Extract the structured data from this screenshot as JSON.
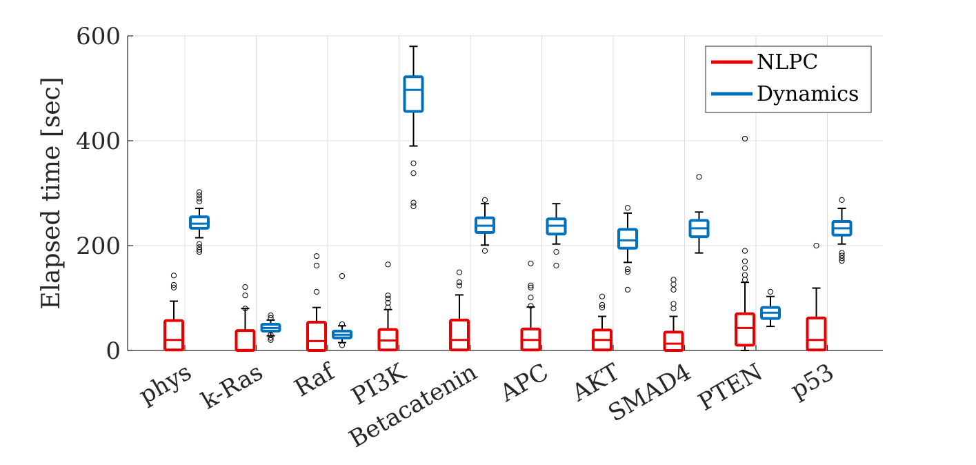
{
  "chart_data": {
    "type": "boxplot",
    "title": "",
    "xlabel": "",
    "ylabel": "Elapsed time [sec]",
    "ylim": [
      0,
      600
    ],
    "yticks": [
      0,
      200,
      400,
      600
    ],
    "grid": true,
    "legend_position": "top-right",
    "categories": [
      "phys",
      "k-Ras",
      "Raf",
      "PI3K",
      "Betacatenin",
      "APC",
      "AKT",
      "SMAD4",
      "PTEN",
      "p53"
    ],
    "series": [
      {
        "name": "NLPC",
        "color": "#e60000",
        "boxes": [
          {
            "whisker_low": 0,
            "q1": 1,
            "median": 20,
            "q3": 57,
            "whisker_high": 94,
            "outliers": [
              120,
              125,
              143
            ]
          },
          {
            "whisker_low": 0,
            "q1": 0,
            "median": 1,
            "q3": 38,
            "whisker_high": 80,
            "outliers": [
              80,
              105,
              121
            ]
          },
          {
            "whisker_low": 0,
            "q1": 0,
            "median": 18,
            "q3": 54,
            "whisker_high": 82,
            "outliers": [
              112,
              162,
              180
            ]
          },
          {
            "whisker_low": 0,
            "q1": 1,
            "median": 19,
            "q3": 40,
            "whisker_high": 78,
            "outliers": [
              82,
              91,
              99,
              105,
              164
            ]
          },
          {
            "whisker_low": 0,
            "q1": 1,
            "median": 20,
            "q3": 58,
            "whisker_high": 106,
            "outliers": [
              124,
              130,
              149
            ]
          },
          {
            "whisker_low": 0,
            "q1": 1,
            "median": 20,
            "q3": 41,
            "whisker_high": 83,
            "outliers": [
              85,
              101,
              120,
              124,
              166
            ]
          },
          {
            "whisker_low": 0,
            "q1": 1,
            "median": 20,
            "q3": 39,
            "whisker_high": 65,
            "outliers": [
              82,
              87,
              103
            ]
          },
          {
            "whisker_low": 0,
            "q1": 0,
            "median": 13,
            "q3": 35,
            "whisker_high": 65,
            "outliers": [
              80,
              89,
              116,
              126,
              135
            ]
          },
          {
            "whisker_low": 0,
            "q1": 10,
            "median": 43,
            "q3": 70,
            "whisker_high": 130,
            "outliers": [
              135,
              144,
              157,
              170,
              190,
              404
            ]
          },
          {
            "whisker_low": 0,
            "q1": 1,
            "median": 20,
            "q3": 62,
            "whisker_high": 119,
            "outliers": [
              200
            ]
          }
        ]
      },
      {
        "name": "Dynamics",
        "color": "#0072bd",
        "boxes": [
          {
            "whisker_low": 215,
            "q1": 233,
            "median": 242,
            "q3": 255,
            "whisker_high": 271,
            "outliers": [
              188,
              192,
              197,
              203,
              284,
              290,
              296,
              302
            ]
          },
          {
            "whisker_low": 28,
            "q1": 37,
            "median": 43,
            "q3": 50,
            "whisker_high": 58,
            "outliers": [
              20,
              24,
              30,
              62,
              67
            ]
          },
          {
            "whisker_low": 15,
            "q1": 24,
            "median": 30,
            "q3": 37,
            "whisker_high": 47,
            "outliers": [
              10,
              50,
              142
            ]
          },
          {
            "whisker_low": 390,
            "q1": 456,
            "median": 497,
            "q3": 522,
            "whisker_high": 580,
            "outliers": [
              275,
              282,
              338,
              357
            ]
          },
          {
            "whisker_low": 201,
            "q1": 225,
            "median": 238,
            "q3": 253,
            "whisker_high": 280,
            "outliers": [
              190,
              287
            ]
          },
          {
            "whisker_low": 203,
            "q1": 222,
            "median": 238,
            "q3": 251,
            "whisker_high": 280,
            "outliers": [
              162,
              188
            ]
          },
          {
            "whisker_low": 168,
            "q1": 195,
            "median": 210,
            "q3": 231,
            "whisker_high": 262,
            "outliers": [
              116,
              150,
              155,
              272
            ]
          },
          {
            "whisker_low": 186,
            "q1": 217,
            "median": 233,
            "q3": 248,
            "whisker_high": 264,
            "outliers": [
              331
            ]
          },
          {
            "whisker_low": 46,
            "q1": 61,
            "median": 72,
            "q3": 82,
            "whisker_high": 103,
            "outliers": [
              112
            ]
          },
          {
            "whisker_low": 203,
            "q1": 220,
            "median": 233,
            "q3": 246,
            "whisker_high": 271,
            "outliers": [
              171,
              176,
              181,
              186,
              287
            ]
          }
        ]
      }
    ]
  }
}
